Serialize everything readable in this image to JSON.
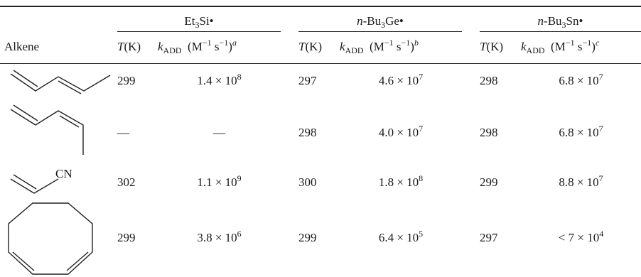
{
  "header": {
    "alkene_label": "Alkene",
    "groups": [
      "Et",
      "n-Bu",
      "n-Bu"
    ],
    "t_label": "T",
    "t_unit": "(K)"
  },
  "rows": [
    {
      "name": "1,3-pentadiene (E)",
      "si": {
        "T": "299",
        "k": "1.4 × 10",
        "exp": "8"
      },
      "ge": {
        "T": "297",
        "k": "4.6 × 10",
        "exp": "7"
      },
      "sn": {
        "T": "298",
        "k": "6.8 × 10",
        "exp": "7"
      }
    },
    {
      "name": "1,3-pentadiene (Z)",
      "si": {
        "T": "—",
        "k": "—",
        "exp": ""
      },
      "ge": {
        "T": "298",
        "k": "4.0 × 10",
        "exp": "7"
      },
      "sn": {
        "T": "298",
        "k": "6.8 × 10",
        "exp": "7"
      }
    },
    {
      "name": "acrylonitrile",
      "si": {
        "T": "302",
        "k": "1.1 × 10",
        "exp": "9"
      },
      "ge": {
        "T": "300",
        "k": "1.8 × 10",
        "exp": "8"
      },
      "sn": {
        "T": "299",
        "k": "8.8 × 10",
        "exp": "7"
      }
    },
    {
      "name": "1,5-cyclooctadiene",
      "si": {
        "T": "299",
        "k": "3.8 × 10",
        "exp": "6"
      },
      "ge": {
        "T": "299",
        "k": "6.4 × 10",
        "exp": "5"
      },
      "sn": {
        "T": "297",
        "k": "< 7 × 10",
        "exp": "4"
      }
    }
  ],
  "structures": {
    "cn_label": "CN"
  }
}
